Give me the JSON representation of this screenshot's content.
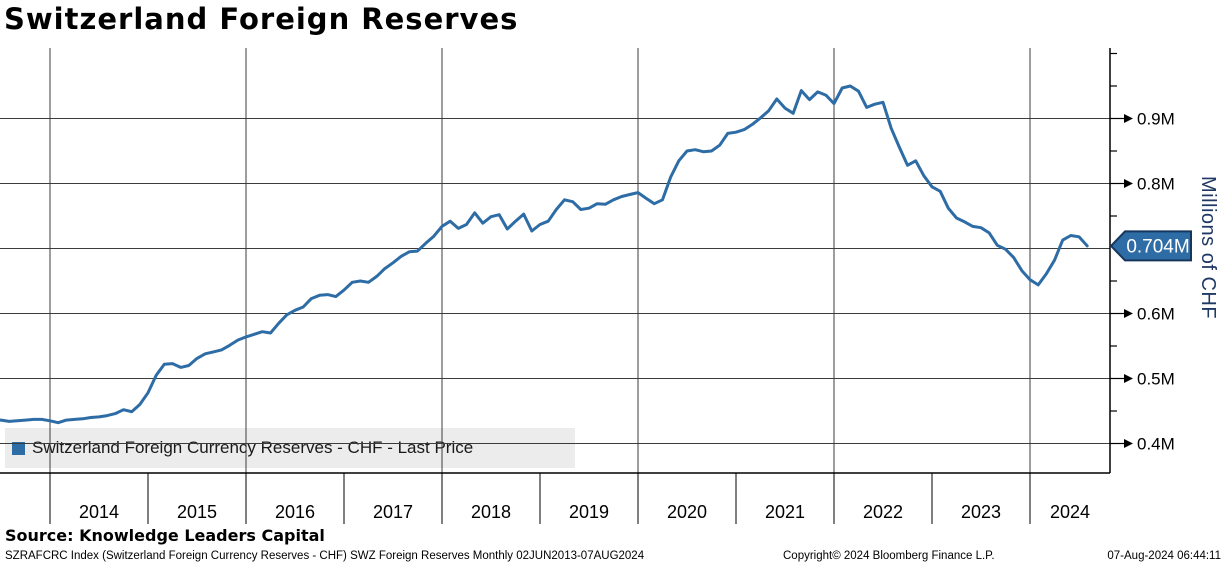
{
  "title": "Switzerland Foreign Reserves",
  "source": "Source: Knowledge Leaders Capital",
  "footer": {
    "left": "SZRAFCRC Index (Switzerland Foreign Currency Reserves - CHF) SWZ Foreign Reserves  Monthly 02JUN2013-07AUG2024",
    "copyright": "Copyright© 2024 Bloomberg Finance L.P.",
    "timestamp": "07-Aug-2024 06:44:11"
  },
  "legend": {
    "label": "Switzerland Foreign Currency Reserves - CHF - Last Price",
    "swatch_color": "#2E6CA6"
  },
  "y_axis_title": "Millions of CHF",
  "last_price": {
    "label": "0.704M",
    "value": 0.704
  },
  "colors": {
    "line": "#2E6CA6",
    "badge_fill": "#2E6CA6",
    "badge_border": "#17365D",
    "badge_text": "#FFFFFF",
    "grid": "#3C3C3C",
    "axis": "#000000",
    "legend_bg": "#ECECEC",
    "y_title": "#1F3864"
  },
  "chart_data": {
    "type": "line",
    "title": "Switzerland Foreign Reserves",
    "ylabel": "Millions of CHF",
    "unit": "millions of CHF",
    "frequency": "Monthly",
    "period": "02JUN2013-07AUG2024",
    "ylim": [
      0.35,
      1.0
    ],
    "grid": true,
    "legend_position": "bottom-left",
    "y_ticks": [
      {
        "v": 0.4,
        "label": "0.4M"
      },
      {
        "v": 0.5,
        "label": "0.5M"
      },
      {
        "v": 0.6,
        "label": "0.6M"
      },
      {
        "v": 0.7,
        "label": ""
      },
      {
        "v": 0.8,
        "label": "0.8M"
      },
      {
        "v": 0.9,
        "label": "0.9M"
      }
    ],
    "y_minor_ticks": [
      0.45,
      0.55,
      0.65,
      0.75,
      0.85,
      0.95,
      1.0
    ],
    "x_year_labels": [
      "2014",
      "2015",
      "2016",
      "2017",
      "2018",
      "2019",
      "2020",
      "2021",
      "2022",
      "2023",
      "2024"
    ],
    "x_gridline_years": [
      2014,
      2016,
      2018,
      2020,
      2022,
      2024
    ],
    "series": [
      {
        "name": "Switzerland Foreign Currency Reserves - CHF - Last Price",
        "color": "#2E6CA6",
        "start_month": "2013-06",
        "end_month": "2024-08",
        "values": [
          0.436,
          0.436,
          0.434,
          0.435,
          0.436,
          0.437,
          0.437,
          0.435,
          0.432,
          0.436,
          0.437,
          0.438,
          0.44,
          0.441,
          0.443,
          0.446,
          0.452,
          0.449,
          0.46,
          0.478,
          0.505,
          0.522,
          0.523,
          0.517,
          0.52,
          0.531,
          0.538,
          0.541,
          0.544,
          0.551,
          0.559,
          0.564,
          0.568,
          0.572,
          0.57,
          0.585,
          0.598,
          0.605,
          0.61,
          0.623,
          0.628,
          0.629,
          0.626,
          0.636,
          0.648,
          0.65,
          0.648,
          0.657,
          0.669,
          0.678,
          0.688,
          0.695,
          0.696,
          0.708,
          0.719,
          0.734,
          0.742,
          0.731,
          0.737,
          0.755,
          0.739,
          0.749,
          0.752,
          0.73,
          0.742,
          0.753,
          0.727,
          0.737,
          0.742,
          0.76,
          0.775,
          0.772,
          0.76,
          0.762,
          0.769,
          0.768,
          0.775,
          0.78,
          0.783,
          0.786,
          0.777,
          0.769,
          0.775,
          0.81,
          0.835,
          0.85,
          0.852,
          0.849,
          0.85,
          0.859,
          0.877,
          0.879,
          0.883,
          0.891,
          0.901,
          0.912,
          0.93,
          0.916,
          0.908,
          0.943,
          0.929,
          0.941,
          0.936,
          0.923,
          0.947,
          0.95,
          0.942,
          0.917,
          0.922,
          0.925,
          0.885,
          0.856,
          0.828,
          0.835,
          0.812,
          0.795,
          0.788,
          0.762,
          0.747,
          0.741,
          0.734,
          0.732,
          0.724,
          0.705,
          0.699,
          0.686,
          0.666,
          0.652,
          0.644,
          0.661,
          0.682,
          0.713,
          0.72,
          0.718,
          0.704
        ]
      }
    ],
    "last_value": 0.704
  }
}
